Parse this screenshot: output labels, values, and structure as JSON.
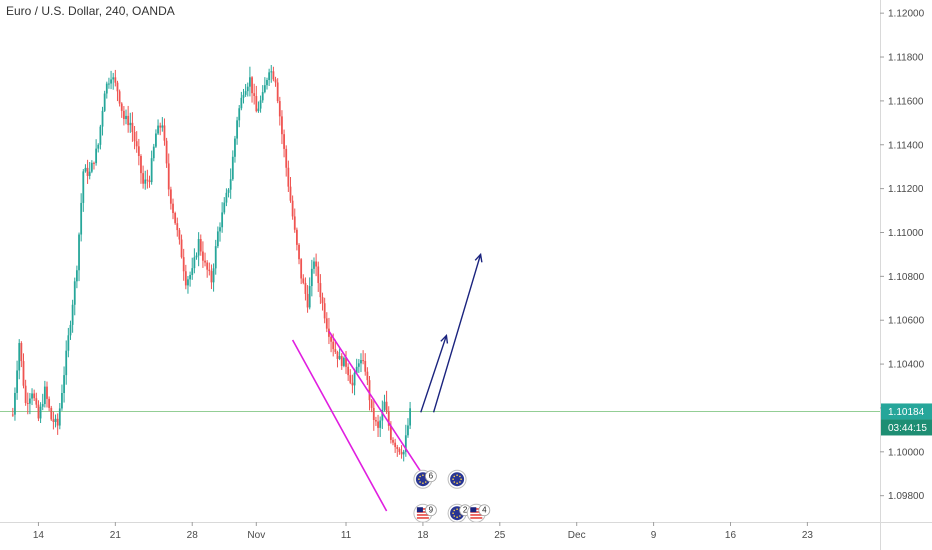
{
  "header": {
    "title": "Euro / U.S. Dollar, 240, OANDA"
  },
  "colors": {
    "up": "#26a69a",
    "down": "#ef5350",
    "channel": "#e01ee0",
    "arrow": "#1a237e",
    "price_line": "#4caf50",
    "price_label_bg": "#26a69a",
    "countdown_bg": "#1e8e73"
  },
  "price_label": {
    "value": "1.10184",
    "countdown": "03:44:15"
  },
  "chart_data": {
    "type": "candlestick",
    "title": "Euro / U.S. Dollar, 240, OANDA",
    "ylim": [
      1.0968,
      1.1206
    ],
    "xlim": [
      -6,
      406
    ],
    "y_ticks": [
      "1.12000",
      "1.11800",
      "1.11600",
      "1.11400",
      "1.11200",
      "1.11000",
      "1.10800",
      "1.10600",
      "1.10400",
      "1.10200",
      "1.10000",
      "1.09800"
    ],
    "x_ticks": [
      {
        "label": "14",
        "x": 12
      },
      {
        "label": "21",
        "x": 48
      },
      {
        "label": "28",
        "x": 84
      },
      {
        "label": "Nov",
        "x": 114
      },
      {
        "label": "11",
        "x": 156
      },
      {
        "label": "18",
        "x": 192
      },
      {
        "label": "25",
        "x": 228
      },
      {
        "label": "Dec",
        "x": 264
      },
      {
        "label": "9",
        "x": 300
      },
      {
        "label": "16",
        "x": 336
      },
      {
        "label": "23",
        "x": 372
      }
    ],
    "last_price": 1.10184,
    "anchors": [
      [
        0,
        1.1017
      ],
      [
        3,
        1.105
      ],
      [
        6,
        1.1022
      ],
      [
        9,
        1.1028
      ],
      [
        12,
        1.1015
      ],
      [
        15,
        1.1028
      ],
      [
        18,
        1.1015
      ],
      [
        21,
        1.1012
      ],
      [
        24,
        1.1036
      ],
      [
        27,
        1.106
      ],
      [
        30,
        1.1085
      ],
      [
        33,
        1.1128
      ],
      [
        36,
        1.1127
      ],
      [
        40,
        1.114
      ],
      [
        43,
        1.1165
      ],
      [
        46,
        1.1172
      ],
      [
        49,
        1.1165
      ],
      [
        52,
        1.1152
      ],
      [
        55,
        1.115
      ],
      [
        58,
        1.1138
      ],
      [
        61,
        1.1122
      ],
      [
        64,
        1.1125
      ],
      [
        67,
        1.1145
      ],
      [
        70,
        1.115
      ],
      [
        73,
        1.112
      ],
      [
        76,
        1.1105
      ],
      [
        79,
        1.109
      ],
      [
        81,
        1.1078
      ],
      [
        84,
        1.1082
      ],
      [
        87,
        1.1096
      ],
      [
        90,
        1.1085
      ],
      [
        93,
        1.1078
      ],
      [
        96,
        1.11
      ],
      [
        99,
        1.1112
      ],
      [
        102,
        1.1125
      ],
      [
        105,
        1.1152
      ],
      [
        108,
        1.1165
      ],
      [
        111,
        1.117
      ],
      [
        114,
        1.1155
      ],
      [
        117,
        1.1162
      ],
      [
        120,
        1.1175
      ],
      [
        123,
        1.117
      ],
      [
        126,
        1.1145
      ],
      [
        129,
        1.1122
      ],
      [
        132,
        1.11
      ],
      [
        135,
        1.108
      ],
      [
        138,
        1.1068
      ],
      [
        141,
        1.1088
      ],
      [
        144,
        1.1072
      ],
      [
        147,
        1.1058
      ],
      [
        150,
        1.1048
      ],
      [
        153,
        1.1042
      ],
      [
        156,
        1.104
      ],
      [
        159,
        1.103
      ],
      [
        162,
        1.1042
      ],
      [
        165,
        1.1038
      ],
      [
        168,
        1.1018
      ],
      [
        171,
        1.101
      ],
      [
        174,
        1.1022
      ],
      [
        177,
        1.1007
      ],
      [
        180,
        1.1002
      ],
      [
        183,
        1.1
      ],
      [
        186,
        1.1018
      ]
    ],
    "annotations": {
      "channel_upper": [
        [
          148,
          1.1055
        ],
        [
          193,
          1.0988
        ]
      ],
      "channel_lower": [
        [
          131,
          1.1051
        ],
        [
          175,
          1.0973
        ]
      ],
      "arrows": [
        [
          [
            191,
            1.1018
          ],
          [
            203,
            1.1053
          ]
        ],
        [
          [
            197,
            1.1018
          ],
          [
            219,
            1.109
          ]
        ]
      ]
    },
    "event_markers": [
      {
        "x": 192,
        "y": 1.09875,
        "flag": "eu",
        "count": "6"
      },
      {
        "x": 192,
        "y": 1.0972,
        "flag": "us",
        "count": "9"
      },
      {
        "x": 208,
        "y": 1.09875,
        "flag": "eu",
        "count": ""
      },
      {
        "x": 208,
        "y": 1.0972,
        "flag": "eu",
        "count": "2"
      },
      {
        "x": 217,
        "y": 1.0972,
        "flag": "us",
        "count": "4"
      }
    ]
  }
}
